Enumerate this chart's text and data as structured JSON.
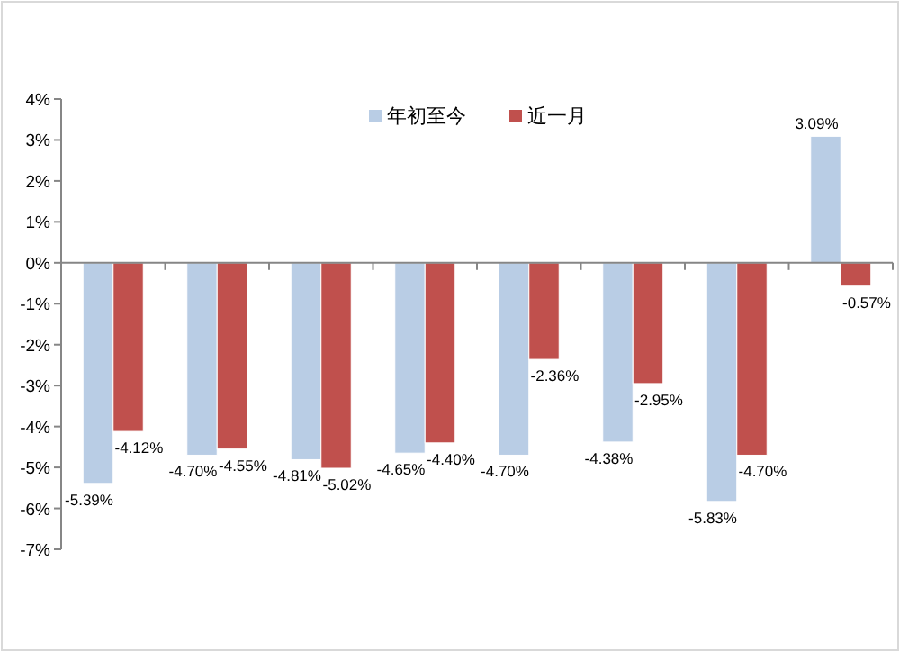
{
  "chart_data": {
    "type": "bar",
    "categories": [
      null,
      null,
      null,
      null,
      null,
      null,
      null,
      null
    ],
    "series": [
      {
        "name": "年初至今",
        "color": "#b9cde5",
        "values": [
          -5.39,
          -4.7,
          -4.81,
          -4.65,
          -4.7,
          -4.38,
          -5.83,
          3.09
        ],
        "value_labels": [
          "-5.39%",
          "-4.70%",
          "-4.81%",
          "-4.65%",
          "-4.70%",
          "-4.38%",
          "-5.83%",
          "3.09%"
        ]
      },
      {
        "name": "近一月",
        "color": "#c0504d",
        "values": [
          -4.12,
          -4.55,
          -5.02,
          -4.4,
          -2.36,
          -2.95,
          -4.7,
          -0.57
        ],
        "value_labels": [
          "-4.12%",
          "-4.55%",
          "-5.02%",
          "-4.40%",
          "-2.36%",
          "-2.95%",
          "-4.70%",
          "-0.57%"
        ]
      }
    ],
    "ylim": [
      -7,
      4
    ],
    "yticks": [
      {
        "value": 4,
        "label": "4%"
      },
      {
        "value": 3,
        "label": "3%"
      },
      {
        "value": 2,
        "label": "2%"
      },
      {
        "value": 1,
        "label": "1%"
      },
      {
        "value": 0,
        "label": "0%"
      },
      {
        "value": -1,
        "label": "-1%"
      },
      {
        "value": -2,
        "label": "-2%"
      },
      {
        "value": -3,
        "label": "-3%"
      },
      {
        "value": -4,
        "label": "-4%"
      },
      {
        "value": -5,
        "label": "-5%"
      },
      {
        "value": -6,
        "label": "-6%"
      },
      {
        "value": -7,
        "label": "-7%"
      }
    ],
    "legend": "top"
  }
}
